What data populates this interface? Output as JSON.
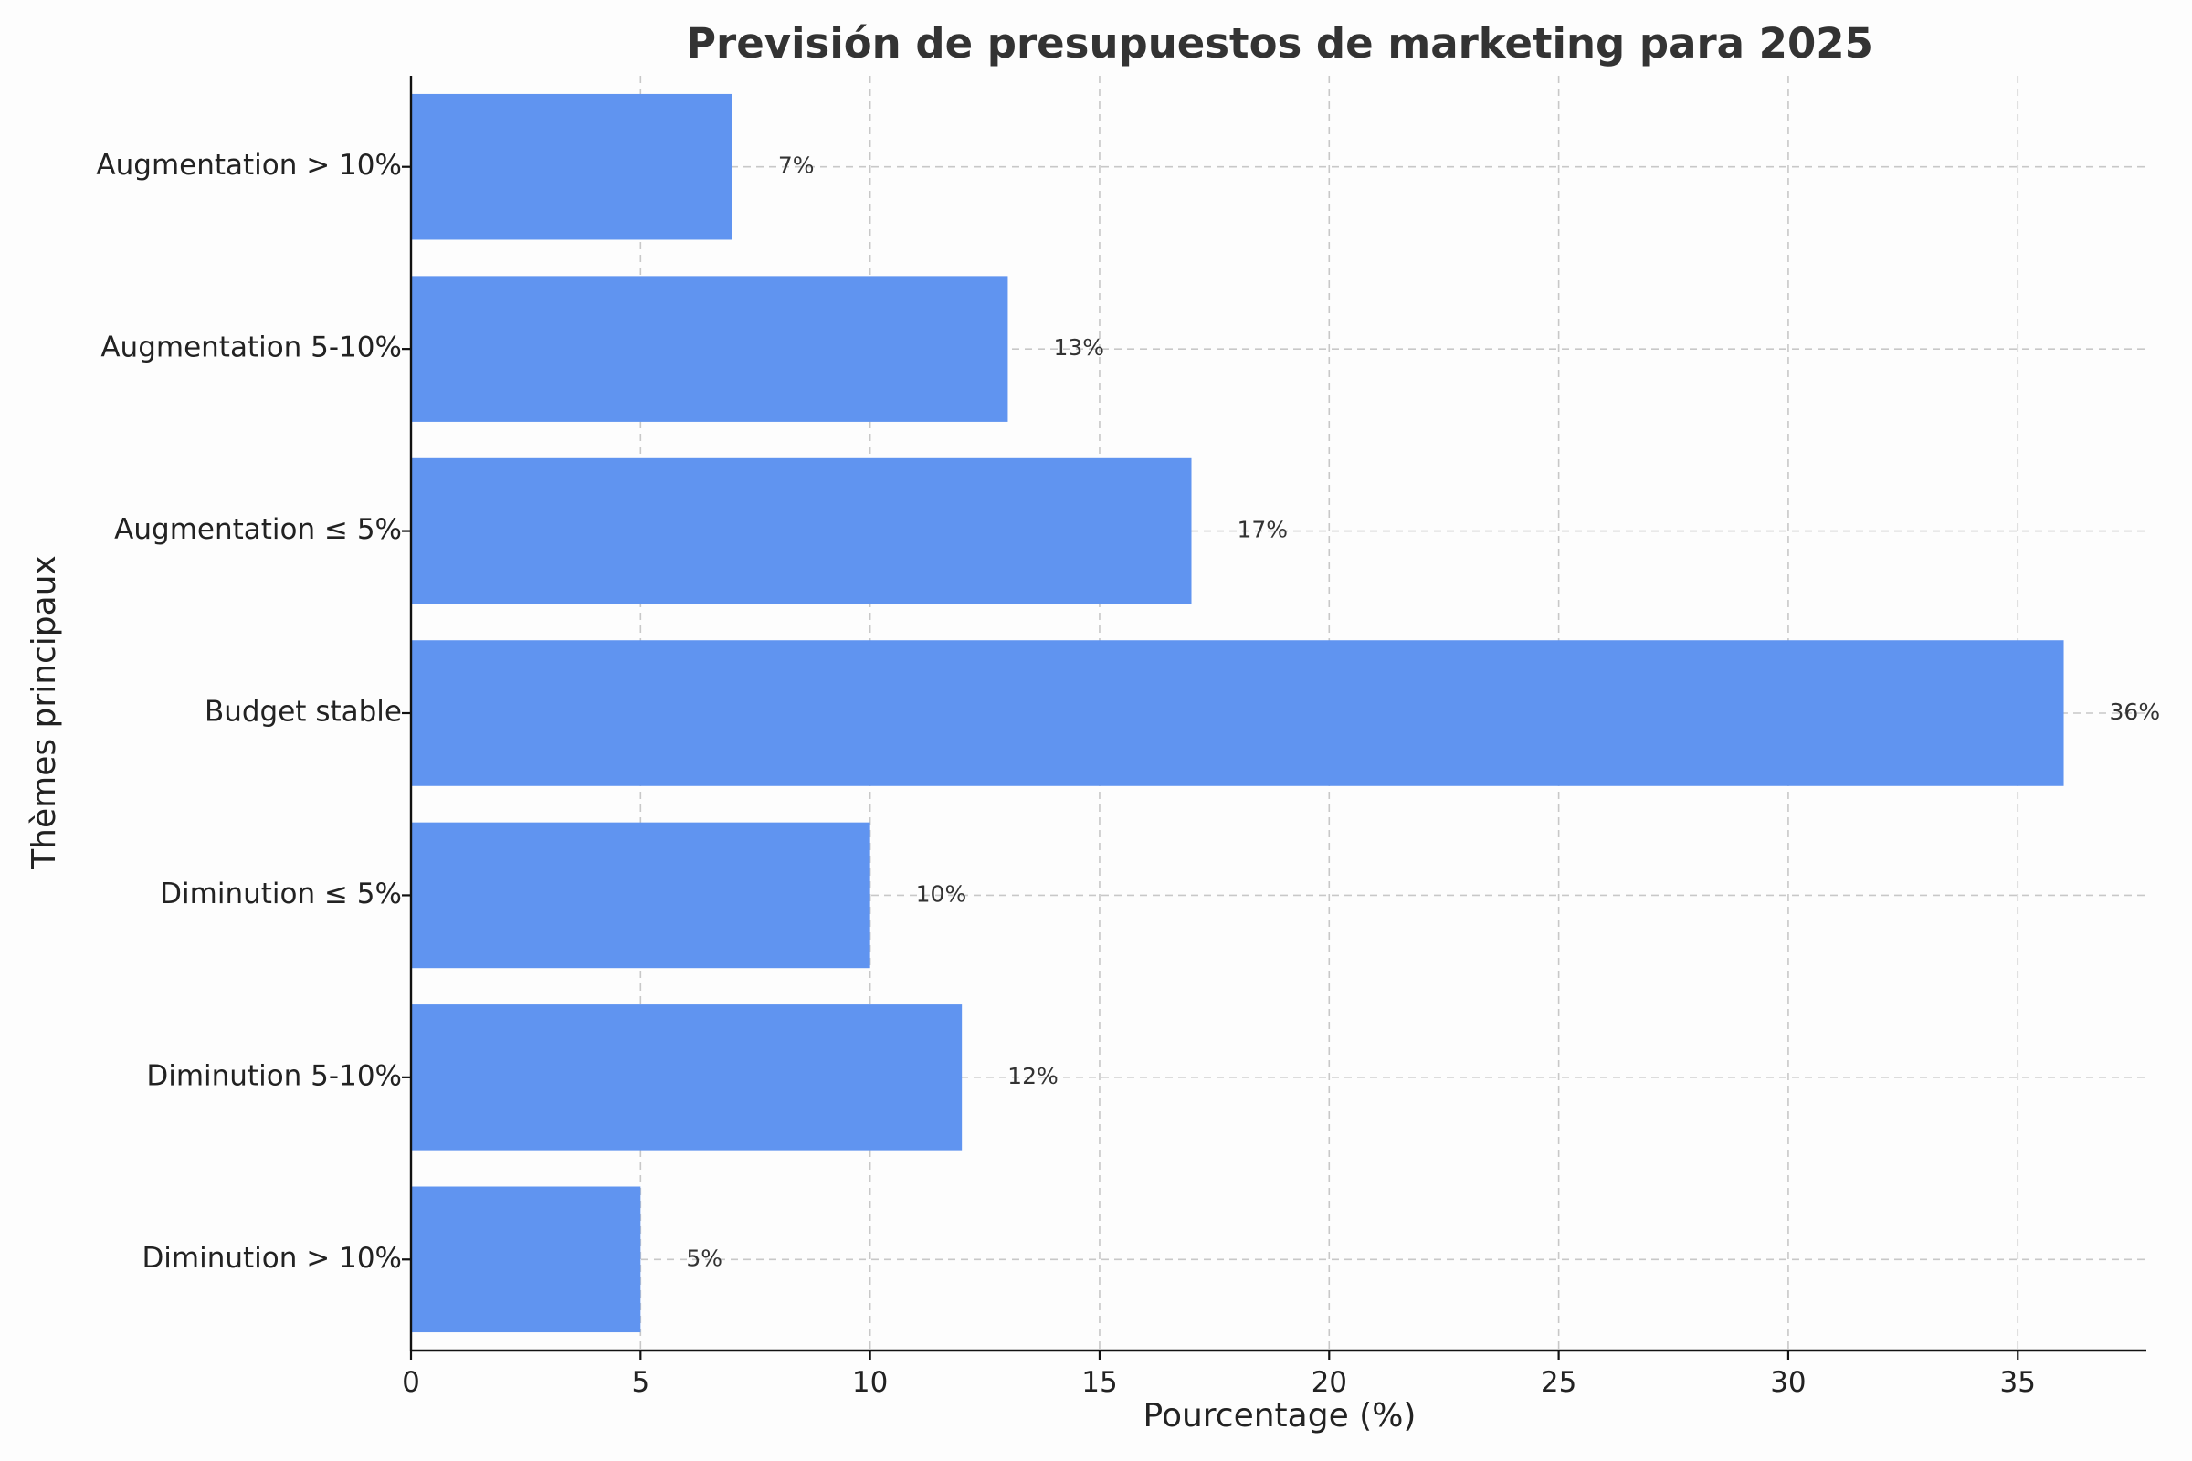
{
  "chart_data": {
    "type": "bar",
    "orientation": "horizontal",
    "title": "Previsión de presupuestos de marketing para 2025",
    "xlabel": "Pourcentage (%)",
    "ylabel": "Thèmes principaux",
    "categories": [
      "Diminution > 10%",
      "Diminution 5-10%",
      "Diminution ≤ 5%",
      "Budget stable",
      "Augmentation ≤ 5%",
      "Augmentation 5-10%",
      "Augmentation > 10%"
    ],
    "values": [
      5,
      12,
      10,
      36,
      17,
      13,
      7
    ],
    "data_labels": [
      "5%",
      "12%",
      "10%",
      "36%",
      "17%",
      "13%",
      "7%"
    ],
    "xlim": [
      0,
      37.8
    ],
    "xticks": [
      0,
      5,
      10,
      15,
      20,
      25,
      30,
      35
    ],
    "grid": true,
    "colors": {
      "bar": "#6094f0",
      "grid": "#c8c8c8",
      "axis": "#111111",
      "title": "#333333"
    }
  }
}
